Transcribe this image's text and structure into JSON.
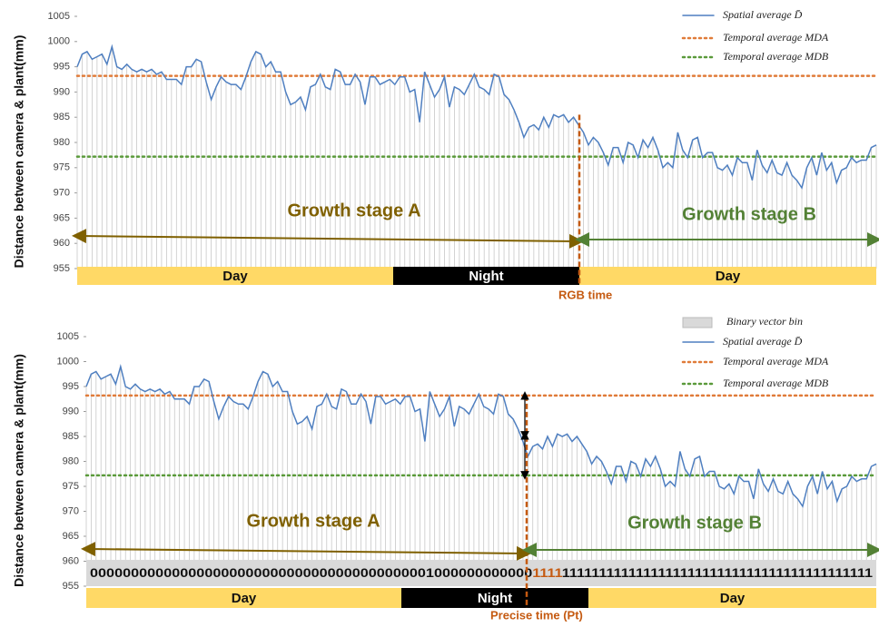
{
  "chart_data": [
    {
      "type": "line",
      "y_label": "Distance between camera & plant(mm)",
      "ylim": [
        955,
        1005
      ],
      "yticks": [
        955,
        960,
        965,
        970,
        975,
        980,
        985,
        990,
        995,
        1000,
        1005
      ],
      "series": [
        {
          "name": "Spatial average D̄",
          "color": "#4f7fc0",
          "values": [
            995,
            997.5,
            998,
            996.5,
            997,
            997.5,
            995.5,
            999,
            995,
            994.5,
            995.5,
            994.5,
            994,
            994.5,
            994,
            994.5,
            993.5,
            994,
            992.5,
            992.5,
            992.5,
            991.5,
            995,
            995,
            996.5,
            996,
            992,
            988.5,
            991,
            993,
            992,
            991.5,
            991.5,
            990.5,
            993,
            996,
            998,
            997.5,
            995,
            996,
            994,
            994,
            990,
            987.5,
            988,
            989,
            986.5,
            991,
            991.5,
            993.5,
            991,
            990.5,
            994.5,
            994,
            991.5,
            991.5,
            993.5,
            992,
            987.5,
            993,
            993,
            991.5,
            992,
            992.5,
            991.5,
            993,
            993,
            990,
            990.5,
            984,
            994,
            991.5,
            989,
            990.5,
            993,
            987,
            991,
            990.5,
            989.5,
            991.5,
            993.5,
            991,
            990.5,
            989.5,
            993.5,
            993,
            989.5,
            988.5,
            986.5,
            984,
            981,
            983,
            983.5,
            982.5,
            985,
            983,
            985.5,
            985,
            985.5,
            984,
            985,
            983.5,
            982,
            979.5,
            981,
            980,
            978,
            975.5,
            979,
            979,
            976,
            980,
            979.5,
            977,
            980.5,
            979,
            981,
            978.5,
            975,
            976,
            975,
            982,
            978.5,
            977,
            980.5,
            981,
            977,
            978,
            978,
            975,
            974.5,
            975.5,
            973.5,
            977,
            976,
            976,
            972.5,
            978.5,
            975.5,
            974,
            976.5,
            974,
            973.5,
            976,
            973.5,
            972.5,
            971,
            975,
            977,
            973.5,
            978,
            974.5,
            976,
            972,
            974.5,
            975,
            977,
            976,
            976.5,
            976.5,
            979,
            979.5
          ]
        },
        {
          "name": "Temporal average MDA",
          "color": "#e07b39",
          "level": 993.2
        },
        {
          "name": "Temporal average MDB",
          "color": "#5a9a3a",
          "level": 977.2
        }
      ],
      "annotations": {
        "stage_a": "Growth stage A",
        "stage_b": "Growth stage B",
        "marker": "RGB time"
      },
      "periods": [
        "Day",
        "Night",
        "Day"
      ]
    },
    {
      "type": "line",
      "y_label": "Distance between camera & plant(mm)",
      "ylim": [
        955,
        1005
      ],
      "yticks": [
        955,
        960,
        965,
        970,
        975,
        980,
        985,
        990,
        995,
        1000,
        1005
      ],
      "bin_name": "Binary vector bin",
      "series": [
        {
          "name": "Spatial average D̄",
          "color": "#4f7fc0",
          "values": [
            995,
            997.5,
            998,
            996.5,
            997,
            997.5,
            995.5,
            999,
            995,
            994.5,
            995.5,
            994.5,
            994,
            994.5,
            994,
            994.5,
            993.5,
            994,
            992.5,
            992.5,
            992.5,
            991.5,
            995,
            995,
            996.5,
            996,
            992,
            988.5,
            991,
            993,
            992,
            991.5,
            991.5,
            990.5,
            993,
            996,
            998,
            997.5,
            995,
            996,
            994,
            994,
            990,
            987.5,
            988,
            989,
            986.5,
            991,
            991.5,
            993.5,
            991,
            990.5,
            994.5,
            994,
            991.5,
            991.5,
            993.5,
            992,
            987.5,
            993,
            993,
            991.5,
            992,
            992.5,
            991.5,
            993,
            993,
            990,
            990.5,
            984,
            994,
            991.5,
            989,
            990.5,
            993,
            987,
            991,
            990.5,
            989.5,
            991.5,
            993.5,
            991,
            990.5,
            989.5,
            993.5,
            993,
            989.5,
            988.5,
            986.5,
            984,
            981,
            983,
            983.5,
            982.5,
            985,
            983,
            985.5,
            985,
            985.5,
            984,
            985,
            983.5,
            982,
            979.5,
            981,
            980,
            978,
            975.5,
            979,
            979,
            976,
            980,
            979.5,
            977,
            980.5,
            979,
            981,
            978.5,
            975,
            976,
            975,
            982,
            978.5,
            977,
            980.5,
            981,
            977,
            978,
            978,
            975,
            974.5,
            975.5,
            973.5,
            977,
            976,
            976,
            972.5,
            978.5,
            975.5,
            974,
            976.5,
            974,
            973.5,
            976,
            973.5,
            972.5,
            971,
            975,
            977,
            973.5,
            978,
            974.5,
            976,
            972,
            974.5,
            975,
            977,
            976,
            976.5,
            976.5,
            979,
            979.5
          ]
        },
        {
          "name": "Temporal average MDA",
          "color": "#e07b39",
          "level": 993.2
        },
        {
          "name": "Temporal average MDB",
          "color": "#5a9a3a",
          "level": 977.2
        }
      ],
      "binary": [
        "000000000000000000000000000000000000000001000000000000",
        "1111",
        "111111111111111111111111111111111111111111"
      ],
      "annotations": {
        "stage_a": "Growth stage A",
        "stage_b": "Growth stage B",
        "marker": "Precise time (Pt)"
      },
      "periods": [
        "Day",
        "Night",
        "Day"
      ]
    }
  ]
}
